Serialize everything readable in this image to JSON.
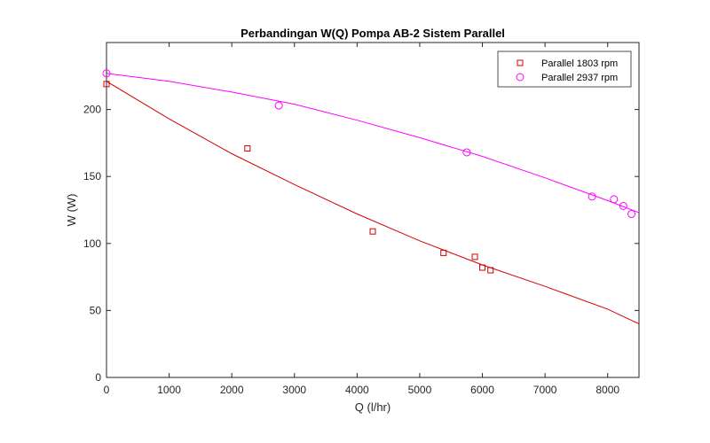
{
  "chart_data": {
    "type": "scatter",
    "title": "Perbandingan W(Q) Pompa AB-2 Sistem Parallel",
    "xlabel": "Q (l/hr)",
    "ylabel": "W (W)",
    "xlim": [
      0,
      8500
    ],
    "ylim": [
      0,
      250
    ],
    "xticks": [
      0,
      1000,
      2000,
      3000,
      4000,
      5000,
      6000,
      7000,
      8000
    ],
    "yticks": [
      0,
      50,
      100,
      150,
      200
    ],
    "grid": false,
    "legend_position": "top-right",
    "series": [
      {
        "name": "Parallel 1803 rpm",
        "marker": "square",
        "color": "#d40000",
        "x": [
          0,
          2250,
          4250,
          5380,
          5880,
          6000,
          6130
        ],
        "y": [
          219,
          171,
          109,
          93,
          90,
          82,
          80
        ],
        "fit": {
          "x": [
            0,
            1000,
            2000,
            3000,
            4000,
            5000,
            6000,
            7000,
            8000,
            8500
          ],
          "y": [
            221,
            193,
            167,
            144,
            122,
            102,
            84,
            68,
            51,
            40
          ]
        }
      },
      {
        "name": "Parallel 2937 rpm",
        "marker": "circle",
        "color": "#ff00ff",
        "x": [
          0,
          2750,
          5750,
          7750,
          8100,
          8250,
          8380
        ],
        "y": [
          227,
          203,
          168,
          135,
          133,
          128,
          122
        ],
        "fit": {
          "x": [
            0,
            1000,
            2000,
            3000,
            4000,
            5000,
            6000,
            7000,
            8000,
            8500
          ],
          "y": [
            227,
            221,
            213,
            204,
            192,
            179,
            165,
            149,
            132,
            123
          ]
        }
      }
    ]
  }
}
